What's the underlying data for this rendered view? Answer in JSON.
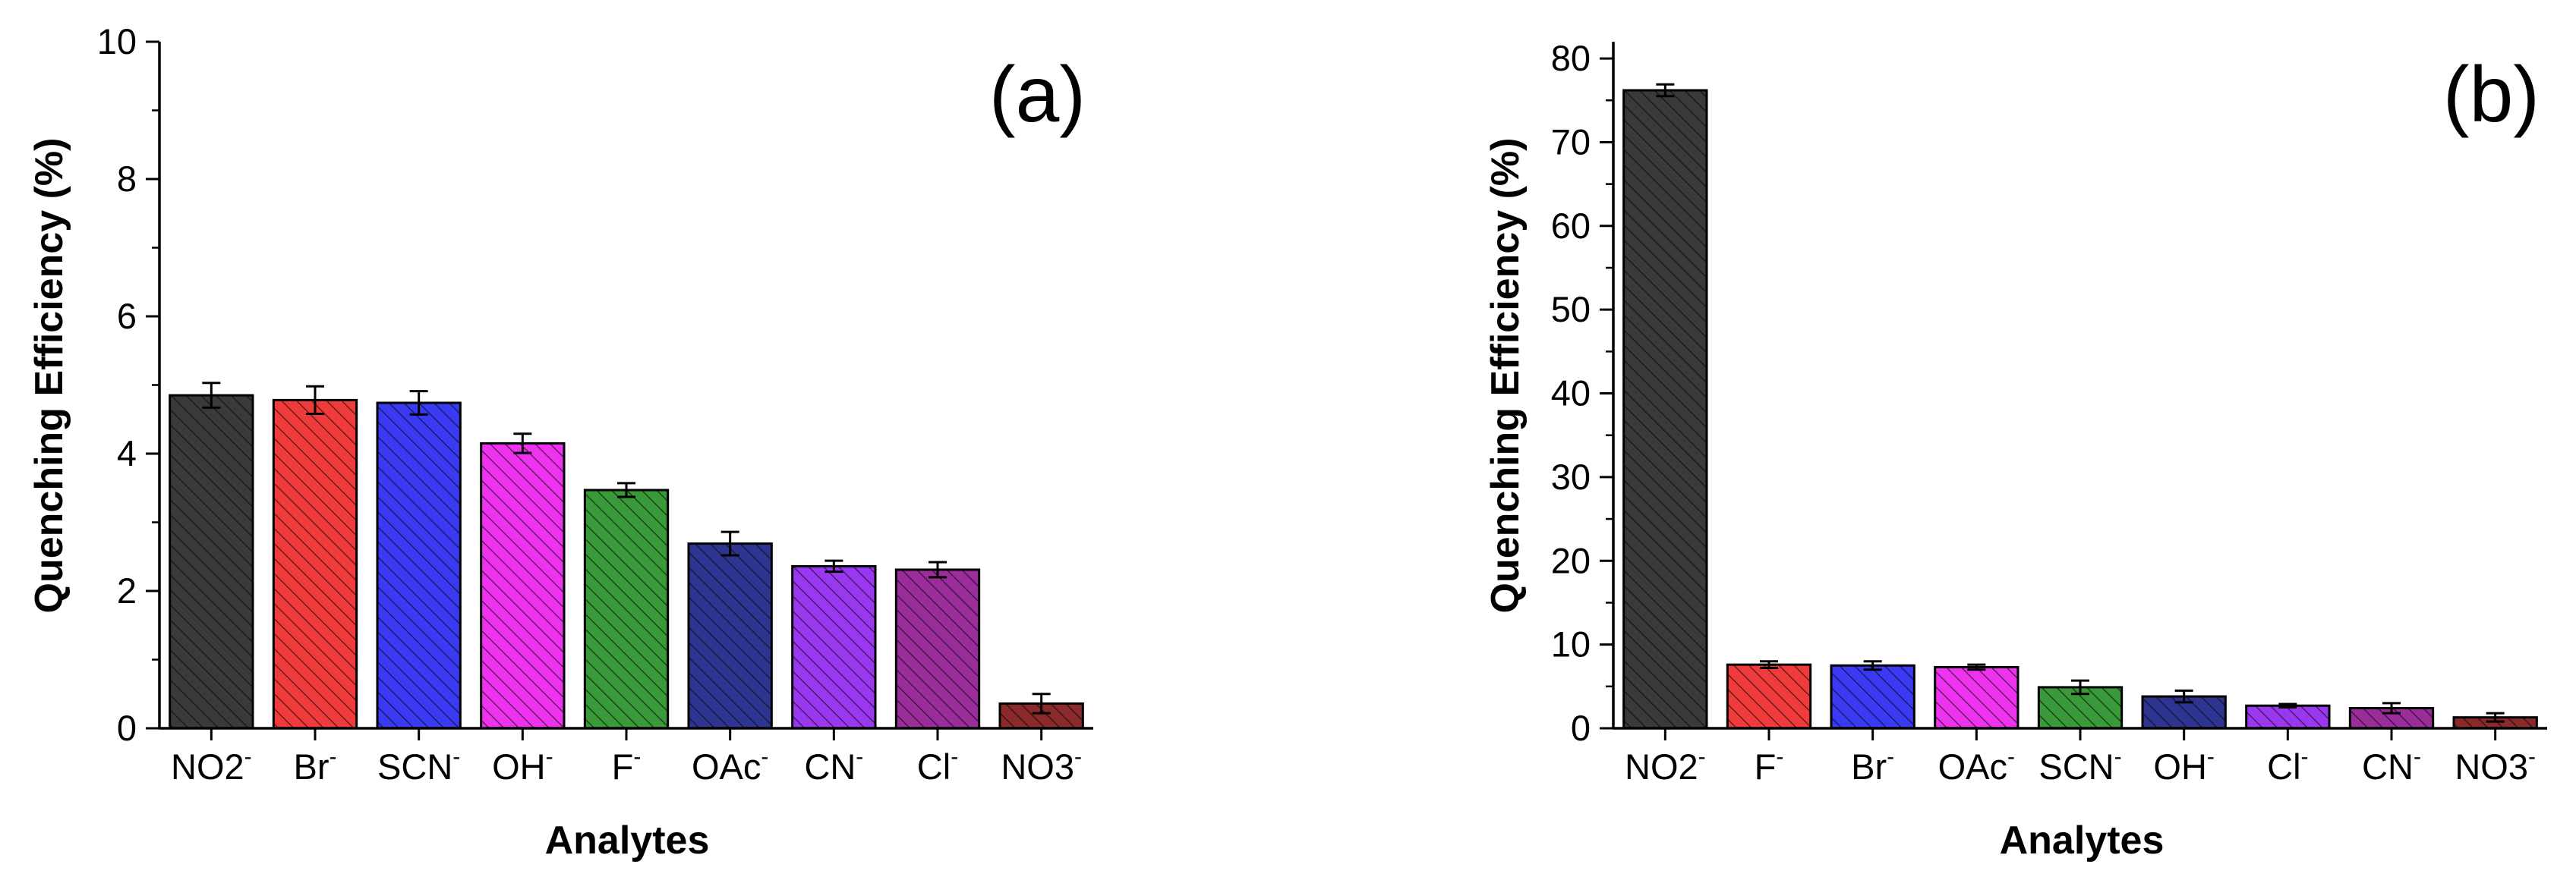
{
  "chart_data": [
    {
      "type": "bar",
      "panel_label": "(a)",
      "xlabel": "Analytes",
      "ylabel": "Quenching Efficiency (%)",
      "ylim": [
        0,
        10
      ],
      "yticks": [
        0,
        2,
        4,
        6,
        8,
        10
      ],
      "categories": [
        {
          "base": "NO2",
          "sup": "-"
        },
        {
          "base": "Br",
          "sup": "-"
        },
        {
          "base": "SCN",
          "sup": "-"
        },
        {
          "base": "OH",
          "sup": "-"
        },
        {
          "base": "F",
          "sup": "-"
        },
        {
          "base": "OAc",
          "sup": "-"
        },
        {
          "base": "CN",
          "sup": "-"
        },
        {
          "base": "Cl",
          "sup": "-"
        },
        {
          "base": "NO3",
          "sup": "-"
        }
      ],
      "values": [
        4.85,
        4.78,
        4.74,
        4.15,
        3.47,
        2.69,
        2.36,
        2.31,
        0.36
      ],
      "errors": [
        0.18,
        0.2,
        0.17,
        0.14,
        0.1,
        0.17,
        0.08,
        0.11,
        0.14
      ],
      "colors": [
        "#3a3a3a",
        "#ef3b3b",
        "#3a3af2",
        "#ee33ee",
        "#3a9a3a",
        "#2e3590",
        "#9a38f0",
        "#9b2d9b",
        "#8a2a2a"
      ]
    },
    {
      "type": "bar",
      "panel_label": "(b)",
      "xlabel": "Analytes",
      "ylabel": "Quenching Efficiency (%)",
      "ylim": [
        0,
        82
      ],
      "yticks": [
        0,
        10,
        20,
        30,
        40,
        50,
        60,
        70,
        80
      ],
      "categories": [
        {
          "base": "NO2",
          "sup": "-"
        },
        {
          "base": "F",
          "sup": "-"
        },
        {
          "base": "Br",
          "sup": "-"
        },
        {
          "base": "OAc",
          "sup": "-"
        },
        {
          "base": "SCN",
          "sup": "-"
        },
        {
          "base": "OH",
          "sup": "-"
        },
        {
          "base": "Cl",
          "sup": "-"
        },
        {
          "base": "CN",
          "sup": "-"
        },
        {
          "base": "NO3",
          "sup": "-"
        }
      ],
      "values": [
        76.2,
        7.6,
        7.5,
        7.3,
        4.9,
        3.8,
        2.7,
        2.4,
        1.3
      ],
      "errors": [
        0.7,
        0.4,
        0.5,
        0.3,
        0.8,
        0.7,
        0.2,
        0.6,
        0.5
      ],
      "colors": [
        "#3a3a3a",
        "#ef3b3b",
        "#3a3af2",
        "#ee33ee",
        "#3a9a3a",
        "#2e3590",
        "#9a38f0",
        "#9b2d9b",
        "#8a2a2a"
      ]
    }
  ]
}
